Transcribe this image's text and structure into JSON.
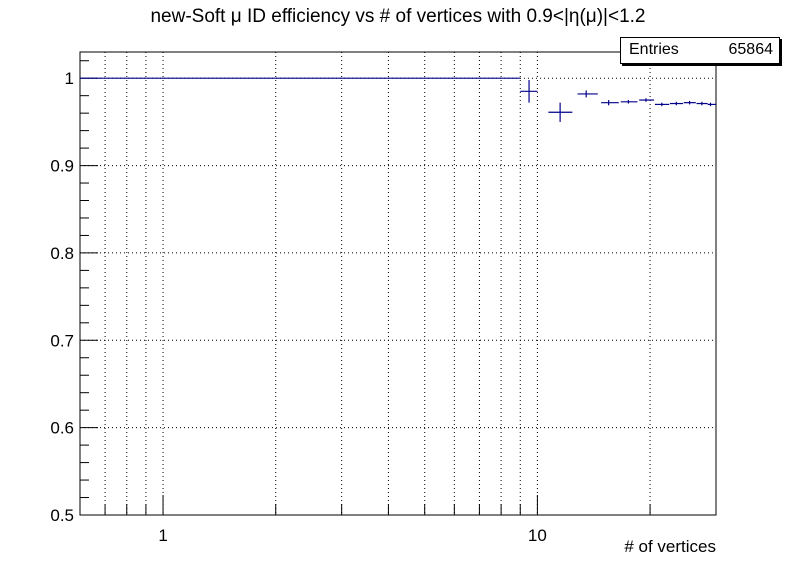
{
  "title": "new-Soft μ ID efficiency vs # of vertices with 0.9<|η(μ)|<1.2",
  "stats": {
    "label": "Entries",
    "value": "65864"
  },
  "chart_data": {
    "type": "scatter",
    "title": "new-Soft μ ID efficiency vs # of vertices with 0.9<|η(μ)|<1.2",
    "xlabel": "# of vertices",
    "ylabel": "",
    "xscale": "log",
    "xlim": [
      0.6,
      30
    ],
    "ylim": [
      0.5,
      1.03
    ],
    "grid": true,
    "y_ticks": [
      "0.5",
      "0.6",
      "0.7",
      "0.8",
      "0.9",
      "1"
    ],
    "x_ticks": [
      "1",
      "10"
    ],
    "line_color": "#00008b",
    "series": [
      {
        "points": [
          {
            "x": 4.75,
            "y": 1.0,
            "xlo": 0.5,
            "xhi": 9.0,
            "yerr": 0.0
          },
          {
            "x": 9.5,
            "y": 0.985,
            "xlo": 9.0,
            "xhi": 10.0,
            "yerr": 0.013
          },
          {
            "x": 11.5,
            "y": 0.961,
            "xlo": 10.7,
            "xhi": 12.4,
            "yerr": 0.011
          },
          {
            "x": 13.5,
            "y": 0.982,
            "xlo": 12.8,
            "xhi": 14.5,
            "yerr": 0.004
          },
          {
            "x": 15.5,
            "y": 0.972,
            "xlo": 14.8,
            "xhi": 16.5,
            "yerr": 0.003
          },
          {
            "x": 17.5,
            "y": 0.973,
            "xlo": 16.7,
            "xhi": 18.5,
            "yerr": 0.002
          },
          {
            "x": 19.5,
            "y": 0.975,
            "xlo": 18.7,
            "xhi": 20.5,
            "yerr": 0.002
          },
          {
            "x": 21.5,
            "y": 0.97,
            "xlo": 20.6,
            "xhi": 22.5,
            "yerr": 0.002
          },
          {
            "x": 23.5,
            "y": 0.971,
            "xlo": 22.6,
            "xhi": 24.5,
            "yerr": 0.002
          },
          {
            "x": 25.5,
            "y": 0.972,
            "xlo": 24.6,
            "xhi": 26.5,
            "yerr": 0.002
          },
          {
            "x": 27.5,
            "y": 0.971,
            "xlo": 26.6,
            "xhi": 28.5,
            "yerr": 0.002
          },
          {
            "x": 29.0,
            "y": 0.97,
            "xlo": 28.5,
            "xhi": 30.0,
            "yerr": 0.002
          }
        ]
      }
    ]
  }
}
